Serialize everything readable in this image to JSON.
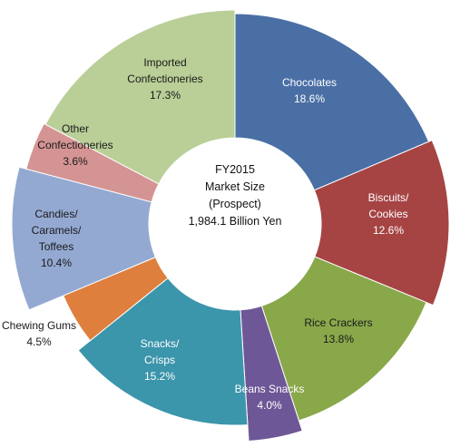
{
  "chart_data": {
    "type": "pie",
    "variant": "donut",
    "center_label": [
      "FY2015",
      "Market Size",
      "(Prospect)",
      "1,984.1 Billion Yen"
    ],
    "slices": [
      {
        "name_lines": [
          "Chocolates"
        ],
        "pct_label": "18.6%",
        "value": 18.6,
        "color": "#4a6fa5",
        "text": "light"
      },
      {
        "name_lines": [
          "Biscuits/",
          "Cookies"
        ],
        "pct_label": "12.6%",
        "value": 12.6,
        "color": "#a64444",
        "text": "light"
      },
      {
        "name_lines": [
          "Rice Crackers"
        ],
        "pct_label": "13.8%",
        "value": 13.8,
        "color": "#89a84a",
        "text": "dark"
      },
      {
        "name_lines": [
          "Beans Snacks"
        ],
        "pct_label": "4.0%",
        "value": 4.0,
        "color": "#6e5796",
        "text": "light"
      },
      {
        "name_lines": [
          "Snacks/",
          "Crisps"
        ],
        "pct_label": "15.2%",
        "value": 15.2,
        "color": "#3b95ab",
        "text": "light"
      },
      {
        "name_lines": [
          "Chewing Gums"
        ],
        "pct_label": "4.5%",
        "value": 4.5,
        "color": "#de7f3d",
        "text": "dark"
      },
      {
        "name_lines": [
          "Candies/",
          "Caramels/",
          "Toffees"
        ],
        "pct_label": "10.4%",
        "value": 10.4,
        "color": "#94a9d2",
        "text": "dark"
      },
      {
        "name_lines": [
          "Other",
          "Confectioneries"
        ],
        "pct_label": "3.6%",
        "value": 3.6,
        "color": "#d49493",
        "text": "dark"
      },
      {
        "name_lines": [
          "Imported",
          "Confectioneries"
        ],
        "pct_label": "17.3%",
        "value": 17.3,
        "color": "#b9cf97",
        "text": "dark"
      }
    ]
  }
}
